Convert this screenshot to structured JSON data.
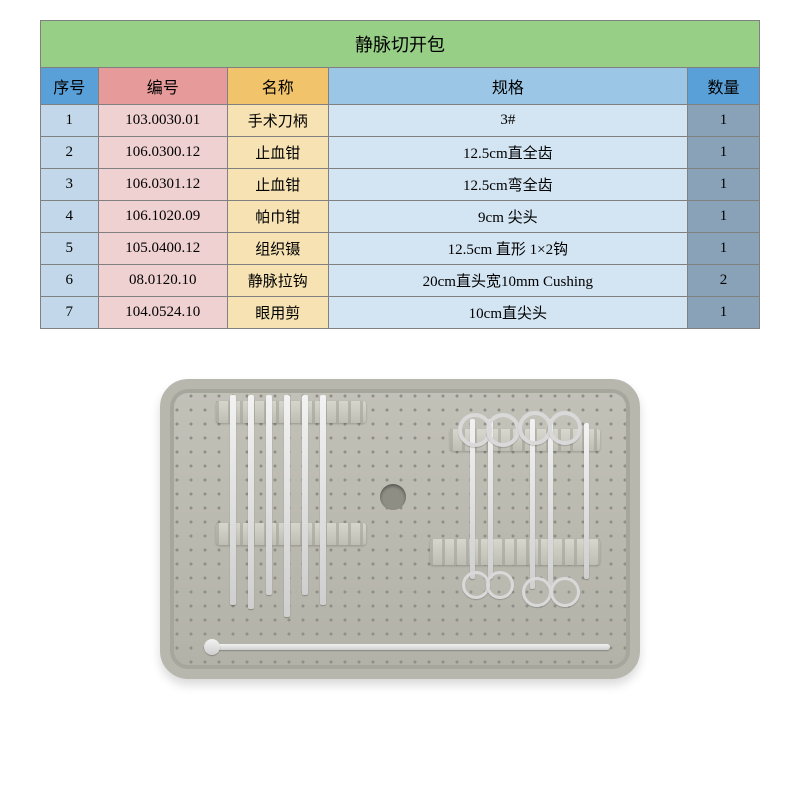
{
  "title": {
    "text": "静脉切开包",
    "bg": "#97cf87"
  },
  "headers": {
    "seq": {
      "label": "序号",
      "bg": "#5aa0d8"
    },
    "code": {
      "label": "编号",
      "bg": "#e69a9a"
    },
    "name": {
      "label": "名称",
      "bg": "#f1c36b"
    },
    "spec": {
      "label": "规格",
      "bg": "#9cc6e6"
    },
    "qty": {
      "label": "数量",
      "bg": "#5aa0d8"
    }
  },
  "rows": [
    {
      "seq": "1",
      "code": "103.0030.01",
      "name": "手术刀柄",
      "spec": "3#",
      "qty": "1"
    },
    {
      "seq": "2",
      "code": "106.0300.12",
      "name": "止血钳",
      "spec": "12.5cm直全齿",
      "qty": "1"
    },
    {
      "seq": "3",
      "code": "106.0301.12",
      "name": "止血钳",
      "spec": "12.5cm弯全齿",
      "qty": "1"
    },
    {
      "seq": "4",
      "code": "106.1020.09",
      "name": "帕巾钳",
      "spec": "9cm 尖头",
      "qty": "1"
    },
    {
      "seq": "5",
      "code": "105.0400.12",
      "name": "组织镊",
      "spec": "12.5cm 直形 1×2钩",
      "qty": "1"
    },
    {
      "seq": "6",
      "code": "08.0120.10",
      "name": "静脉拉钩",
      "spec": "20cm直头宽10mm Cushing",
      "qty": "2"
    },
    {
      "seq": "7",
      "code": "104.0524.10",
      "name": "眼用剪",
      "spec": "10cm直尖头",
      "qty": "1"
    }
  ],
  "row_colors": {
    "seq": "#c2d8ea",
    "code": "#f0d1d1",
    "name": "#f6e2b3",
    "spec": "#d3e4f2",
    "qty": "#8aa2b8"
  },
  "border_color": "#808080",
  "font": "SimSun"
}
